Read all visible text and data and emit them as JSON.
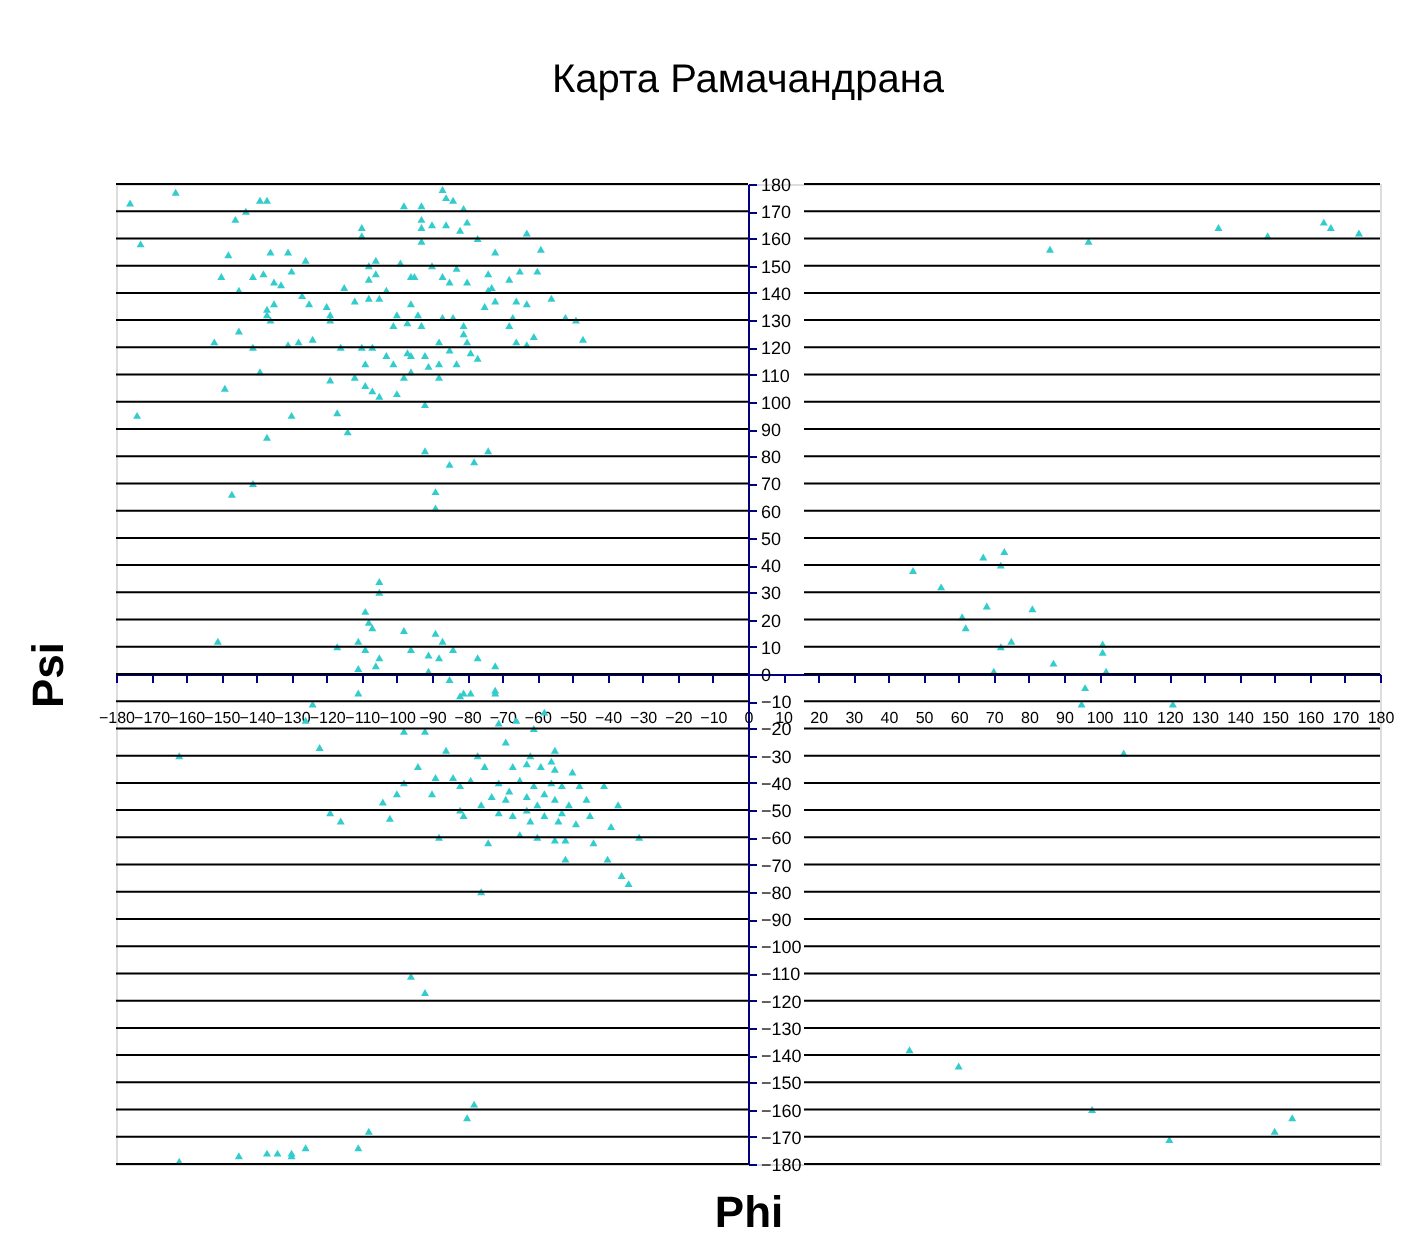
{
  "chart_data": {
    "type": "scatter",
    "title": "Карта Рамачандрана",
    "xlabel": "Phi",
    "ylabel": "Psi",
    "color": "#33cccc",
    "marker": "triangle",
    "grid": "y",
    "xlim": [
      -180,
      180
    ],
    "ylim": [
      -180,
      180
    ],
    "xticks": [
      -180,
      -170,
      -160,
      -150,
      -140,
      -130,
      -120,
      -110,
      -100,
      -90,
      -80,
      -70,
      -60,
      -50,
      -40,
      -30,
      -20,
      -10,
      0,
      10,
      20,
      30,
      40,
      50,
      60,
      70,
      80,
      90,
      100,
      110,
      120,
      130,
      140,
      150,
      160,
      170,
      180
    ],
    "yticks": [
      -180,
      -170,
      -160,
      -150,
      -140,
      -130,
      -120,
      -110,
      -100,
      -90,
      -80,
      -70,
      -60,
      -50,
      -40,
      -30,
      -20,
      -10,
      0,
      10,
      20,
      30,
      40,
      50,
      60,
      70,
      80,
      90,
      100,
      110,
      120,
      130,
      140,
      150,
      160,
      170,
      180
    ],
    "x": [
      -176,
      -163,
      -139,
      -137,
      -143,
      -146,
      -173,
      -148,
      -136,
      -131,
      -126,
      -150,
      -141,
      -138,
      -130,
      -135,
      -133,
      -145,
      -127,
      -135,
      -125,
      -137,
      -137,
      -136,
      -120,
      -119,
      -119,
      -115,
      -112,
      -108,
      -105,
      -103,
      -108,
      -106,
      -108,
      -106,
      -99,
      -96,
      -95,
      -110,
      -110,
      -98,
      -93,
      -87,
      -86,
      -84,
      -81,
      -93,
      -93,
      -93,
      -90,
      -86,
      -82,
      -80,
      -77,
      -63,
      -59,
      -72,
      -90,
      -83,
      -87,
      -85,
      -80,
      -74,
      -73,
      -74,
      -68,
      -65,
      -60,
      -56,
      -75,
      -72,
      -66,
      -63,
      -96,
      -100,
      -94,
      -87,
      -84,
      -101,
      -97,
      -93,
      -81,
      -81,
      -67,
      -68,
      -52,
      -49,
      -47,
      -61,
      -66,
      -63,
      -145,
      -152,
      -141,
      -131,
      -128,
      -124,
      -116,
      -110,
      -107,
      -103,
      -101,
      -97,
      -96,
      -92,
      -88,
      -85,
      -80,
      -79,
      -77,
      -83,
      -88,
      -91,
      -96,
      -98,
      -88,
      -109,
      -112,
      -109,
      -107,
      -105,
      -100,
      -119,
      -139,
      -149,
      -174,
      -130,
      -137,
      -117,
      -114,
      -92,
      -92,
      -85,
      -78,
      -74,
      -141,
      -147,
      -89,
      -89,
      -105,
      -105,
      -109,
      -108,
      -107,
      -151,
      -117,
      -111,
      -109,
      -105,
      -111,
      -106,
      -98,
      -96,
      -91,
      -89,
      -87,
      -88,
      -84,
      -77,
      -72,
      -91,
      -85,
      -111,
      -124,
      -126,
      -82,
      -79,
      -72,
      -162,
      -81,
      -72,
      -122,
      -119,
      -116,
      -104,
      -102,
      -100,
      -98,
      -94,
      -90,
      -88,
      -89,
      -86,
      -84,
      -82,
      -82,
      -81,
      -79,
      -77,
      -75,
      -76,
      -74,
      -76,
      -92,
      -98,
      -71,
      -69,
      -66,
      -61,
      -58,
      -55,
      -41,
      -37,
      -39,
      -44,
      -31,
      -40,
      -36,
      -34,
      -52,
      -67,
      -63,
      -59,
      -55,
      -50,
      -71,
      -65,
      -61,
      -56,
      -53,
      -48,
      -69,
      -63,
      -60,
      -55,
      -51,
      -46,
      -67,
      -62,
      -58,
      -54,
      -49,
      -65,
      -60,
      -55,
      -52,
      -62,
      -56,
      -68,
      -58,
      -53,
      -63,
      -71,
      -45,
      -73,
      -96,
      -92,
      -78,
      -80,
      -108,
      -111,
      -126,
      -130,
      -130,
      -134,
      -137,
      -145,
      -162,
      86,
      97,
      134,
      148,
      164,
      166,
      174,
      47,
      55,
      67,
      73,
      72,
      61,
      62,
      68,
      81,
      72,
      75,
      70,
      87,
      101,
      101,
      102,
      96,
      95,
      107,
      46,
      60,
      98,
      120,
      150,
      155,
      121
    ],
    "values": [
      173,
      177,
      174,
      174,
      170,
      167,
      158,
      154,
      155,
      155,
      152,
      146,
      146,
      147,
      148,
      144,
      143,
      141,
      139,
      136,
      136,
      134,
      132,
      130,
      135,
      132,
      130,
      142,
      137,
      138,
      138,
      141,
      145,
      147,
      150,
      152,
      151,
      146,
      146,
      164,
      161,
      172,
      172,
      178,
      175,
      174,
      171,
      167,
      164,
      159,
      165,
      165,
      163,
      166,
      160,
      162,
      156,
      155,
      150,
      149,
      146,
      144,
      144,
      147,
      142,
      141,
      145,
      148,
      148,
      138,
      135,
      137,
      137,
      136,
      136,
      132,
      132,
      131,
      131,
      128,
      129,
      128,
      128,
      125,
      131,
      128,
      131,
      130,
      123,
      124,
      122,
      121,
      126,
      122,
      120,
      121,
      122,
      123,
      120,
      120,
      120,
      117,
      114,
      118,
      117,
      117,
      122,
      119,
      122,
      118,
      116,
      114,
      114,
      113,
      111,
      109,
      109,
      114,
      109,
      106,
      104,
      102,
      103,
      108,
      111,
      105,
      95,
      95,
      87,
      96,
      89,
      99,
      82,
      77,
      78,
      82,
      70,
      66,
      67,
      61,
      34,
      30,
      23,
      19,
      17,
      12,
      10,
      12,
      9,
      6,
      2,
      3,
      16,
      9,
      7,
      15,
      12,
      6,
      9,
      6,
      3,
      1,
      -2,
      -7,
      -11,
      -17,
      -8,
      -7,
      -6,
      -30,
      -7,
      -7,
      -27,
      -51,
      -54,
      -47,
      -53,
      -44,
      -40,
      -34,
      -44,
      -60,
      -38,
      -28,
      -38,
      -41,
      -50,
      -52,
      -39,
      -30,
      -34,
      -48,
      -62,
      -80,
      -21,
      -21,
      -18,
      -25,
      -17,
      -20,
      -14,
      -28,
      -41,
      -48,
      -56,
      -62,
      -60,
      -68,
      -74,
      -77,
      -68,
      -34,
      -33,
      -34,
      -35,
      -36,
      -40,
      -39,
      -41,
      -40,
      -41,
      -41,
      -46,
      -45,
      -48,
      -46,
      -48,
      -46,
      -52,
      -54,
      -52,
      -54,
      -55,
      -59,
      -60,
      -61,
      -61,
      -30,
      -32,
      -43,
      -44,
      -51,
      -50,
      -51,
      -52,
      -45,
      -111,
      -117,
      -158,
      -163,
      -168,
      -174,
      -174,
      -176,
      -177,
      -176,
      -176,
      -177,
      -179,
      156,
      159,
      164,
      161,
      166,
      164,
      162,
      38,
      32,
      43,
      45,
      40,
      21,
      17,
      25,
      24,
      10,
      12,
      1,
      4,
      11,
      8,
      1,
      -5,
      -11,
      -29,
      -138,
      -144,
      -160,
      -171,
      -168,
      -163,
      -11
    ]
  }
}
